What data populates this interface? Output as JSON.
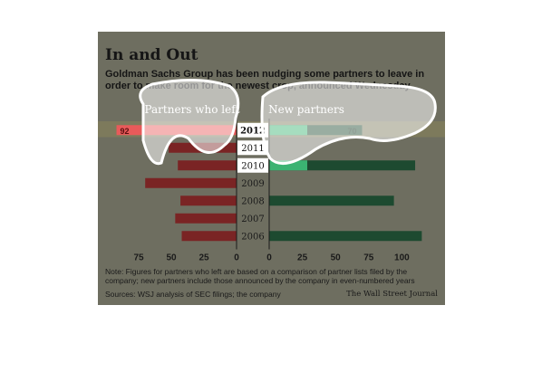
{
  "title": "In and Out",
  "subtitle": "Goldman Sachs Group has been nudging some partners to leave in order to make room for the newest crop, announced Wednesday",
  "note": "Note: Figures for partners who left are based on a comparison of partner lists filed by the company; new partners include those announced by the company in even-numbered years",
  "source": "Sources: WSJ analysis of SEC filings; the company",
  "credit": "The Wall Street Journal",
  "colors": {
    "left": "#7a2424",
    "new": "#1d4a30",
    "left_highlight": "#e85a5a",
    "new_highlight": "#3fbf7a",
    "background": "#6e6e60"
  },
  "chart_data": {
    "type": "bar",
    "orientation": "horizontal-diverging",
    "categories": [
      "2012",
      "2011",
      "2010",
      "2009",
      "2008",
      "2007",
      "2006"
    ],
    "series": [
      {
        "name": "Partners who left",
        "values": [
          92,
          52,
          45,
          70,
          43,
          47,
          42
        ]
      },
      {
        "name": "New partners",
        "values": [
          70,
          null,
          110,
          null,
          94,
          null,
          115
        ]
      }
    ],
    "data_labels": {
      "left": [
        "92",
        "",
        "",
        "",
        "",
        "",
        ""
      ],
      "right": [
        "70",
        "",
        "",
        "",
        "",
        "",
        ""
      ]
    },
    "left_ticks": [
      75,
      50,
      25,
      0
    ],
    "right_ticks": [
      0,
      25,
      50,
      75,
      100
    ],
    "left_range": [
      0,
      100
    ],
    "right_range": [
      0,
      125
    ],
    "highlight": [
      "2012",
      "2011",
      "2010"
    ]
  }
}
